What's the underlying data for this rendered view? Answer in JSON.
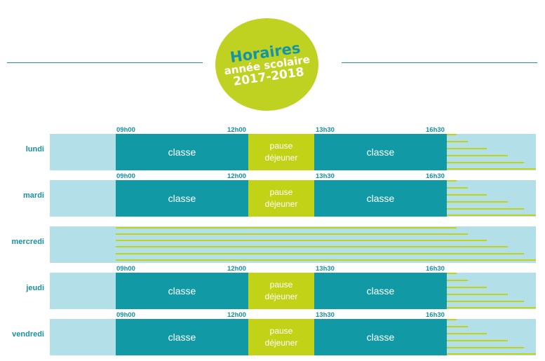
{
  "badge": {
    "title": "Horaires",
    "subtitle": "année scolaire",
    "year": "2017-2018"
  },
  "times": [
    "09h00",
    "12h00",
    "13h30",
    "16h30"
  ],
  "segments": {
    "class_label": "classe",
    "pause_line1": "pause",
    "pause_line2": "déjeuner"
  },
  "days": [
    {
      "label": "lundi"
    },
    {
      "label": "mardi"
    },
    {
      "label": "mercredi"
    },
    {
      "label": "jeudi"
    },
    {
      "label": "vendredi"
    }
  ],
  "colors": {
    "teal": "#119aa5",
    "light_blue": "#b3dfe8",
    "lime": "#c2d217"
  }
}
